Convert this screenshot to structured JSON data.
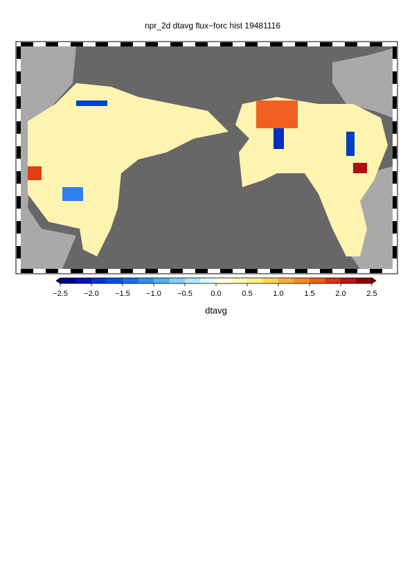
{
  "title": "npr_2d dtavg flux−forc hist 19481116",
  "colorbar": {
    "label": "dtavg",
    "lim": [
      -2.5,
      2.5
    ],
    "ticks": [
      {
        "value": -2.5,
        "label": "−2.5"
      },
      {
        "value": -2.0,
        "label": "−2.0"
      },
      {
        "value": -1.5,
        "label": "−1.5"
      },
      {
        "value": -1.0,
        "label": "−1.0"
      },
      {
        "value": -0.5,
        "label": "−0.5"
      },
      {
        "value": 0,
        "label": "0.0"
      },
      0.5,
      {
        "value": 1,
        "label": "1.0"
      },
      1.5,
      {
        "value": 2,
        "label": "2.0"
      },
      2.5
    ],
    "colors": [
      "#000090",
      "#0010c0",
      "#0030e0",
      "#0050f0",
      "#1070f0",
      "#3090f0",
      "#50b0f0",
      "#80d0f8",
      "#b0e8fc",
      "#e0f8ff",
      "#ffffe0",
      "#fff8b0",
      "#fff080",
      "#ffd850",
      "#ffb030",
      "#ff8820",
      "#f06010",
      "#e03010",
      "#c01010",
      "#900000"
    ]
  }
}
